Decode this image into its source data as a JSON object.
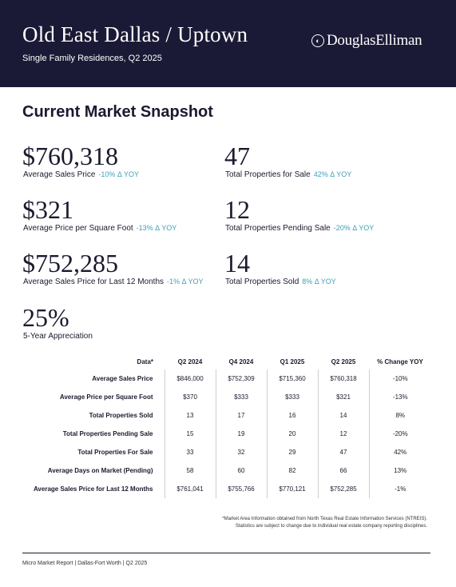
{
  "header": {
    "title": "Old East Dallas / Uptown",
    "subtitle": "Single Family Residences, Q2 2025",
    "logo_text": "DouglasElliman",
    "logo_mark": "DE",
    "background_color": "#1b1a36"
  },
  "snapshot": {
    "title": "Current Market Snapshot",
    "accent_color": "#3fa0b8",
    "avg_price": {
      "value": "$760,318",
      "label": "Average Sales Price",
      "change": "-10% Δ YOY"
    },
    "total_for_sale": {
      "value": "47",
      "label": "Total Properties for Sale",
      "change": "42% Δ YOY"
    },
    "price_sqft": {
      "value": "$321",
      "label": "Average Price per Square Foot",
      "change": "-13% Δ YOY"
    },
    "pending": {
      "value": "12",
      "label": "Total Properties Pending Sale",
      "change": "-20% Δ YOY"
    },
    "avg_12mo": {
      "value": "$752,285",
      "label": "Average Sales Price for Last 12 Months",
      "change": "-1% Δ YOY"
    },
    "sold": {
      "value": "14",
      "label": "Total Properties Sold",
      "change": "8% Δ YOY"
    },
    "appreciation": {
      "value": "25%",
      "label": "5-Year Appreciation"
    }
  },
  "table": {
    "headers": [
      "Data*",
      "Q2 2024",
      "Q4 2024",
      "Q1 2025",
      "Q2 2025",
      "% Change YOY"
    ],
    "rows": [
      [
        "Average Sales Price",
        "$846,000",
        "$752,309",
        "$715,360",
        "$760,318",
        "-10%"
      ],
      [
        "Average Price per Square Foot",
        "$370",
        "$333",
        "$333",
        "$321",
        "-13%"
      ],
      [
        "Total Properties Sold",
        "13",
        "17",
        "16",
        "14",
        "8%"
      ],
      [
        "Total Properties Pending Sale",
        "15",
        "19",
        "20",
        "12",
        "-20%"
      ],
      [
        "Total Properties For Sale",
        "33",
        "32",
        "29",
        "47",
        "42%"
      ],
      [
        "Average Days on Market (Pending)",
        "58",
        "60",
        "82",
        "66",
        "13%"
      ],
      [
        "Average Sales Price for Last 12 Months",
        "$761,041",
        "$755,766",
        "$770,121",
        "$752,285",
        "-1%"
      ]
    ]
  },
  "footnote": {
    "line1": "*Market Area Information obtained from North Texas Real Estate Information Services (NTREIS).",
    "line2": "Statistics are subject to change due to individual real estate company reporting disciplines."
  },
  "footer": {
    "text": "Micro Market Report | Dallas-Fort Worth | Q2 2025"
  }
}
